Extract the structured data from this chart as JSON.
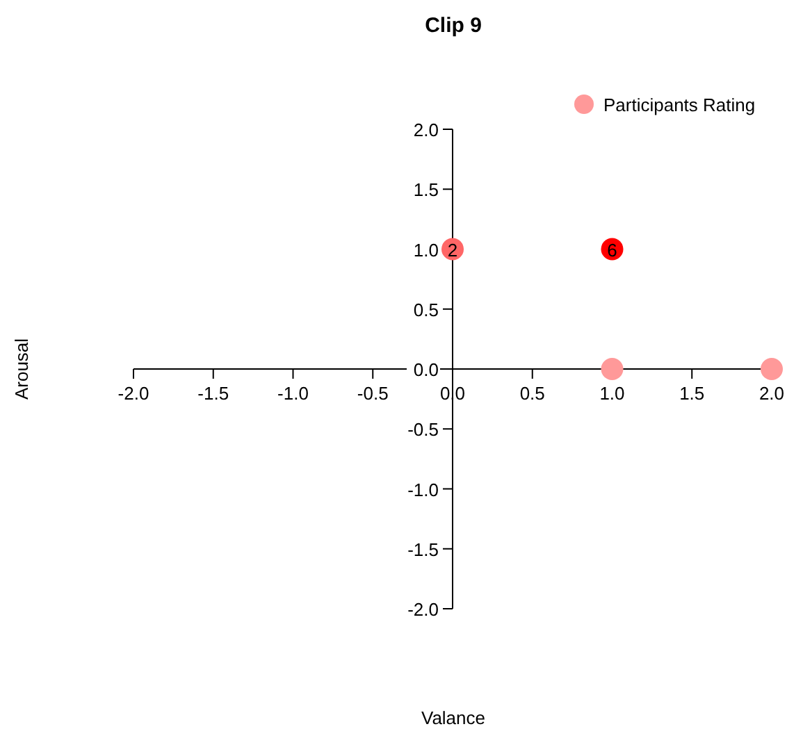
{
  "chart_data": {
    "type": "scatter",
    "title": "Clip 9",
    "xlabel": "Valance",
    "ylabel": "Arousal",
    "x": [
      0,
      1,
      1,
      2
    ],
    "series": [
      {
        "name": "Participants Rating",
        "color": "#ff9999",
        "values": [
          1,
          1,
          0,
          0
        ],
        "colors": [
          "#ff6666",
          "#ff0000",
          "#ff9999",
          "#ff9999"
        ]
      }
    ],
    "annotations": [
      {
        "text": "2",
        "x": 0,
        "y": 1
      },
      {
        "text": "6",
        "x": 1,
        "y": 1
      }
    ],
    "xlim": [
      -2,
      2
    ],
    "ylim": [
      -2,
      2
    ],
    "xticks": [
      {
        "value": -2,
        "label": "-2.0"
      },
      {
        "value": -1.5,
        "label": "-1.5"
      },
      {
        "value": -1,
        "label": "-1.0"
      },
      {
        "value": -0.5,
        "label": "-0.5"
      },
      {
        "value": 0,
        "label": "0.0"
      },
      {
        "value": 0.5,
        "label": "0.5"
      },
      {
        "value": 1,
        "label": "1.0"
      },
      {
        "value": 1.5,
        "label": "1.5"
      },
      {
        "value": 2,
        "label": "2.0"
      }
    ],
    "yticks": [
      {
        "value": -2,
        "label": "-2.0"
      },
      {
        "value": -1.5,
        "label": "-1.5"
      },
      {
        "value": -1,
        "label": "-1.0"
      },
      {
        "value": -0.5,
        "label": "-0.5"
      },
      {
        "value": 0,
        "label": "0.0"
      },
      {
        "value": 0.5,
        "label": "0.5"
      },
      {
        "value": 1,
        "label": "1.0"
      },
      {
        "value": 1.5,
        "label": "1.5"
      },
      {
        "value": 2,
        "label": "2.0"
      }
    ],
    "legend": "top right",
    "marker": "circle",
    "grid": false
  }
}
